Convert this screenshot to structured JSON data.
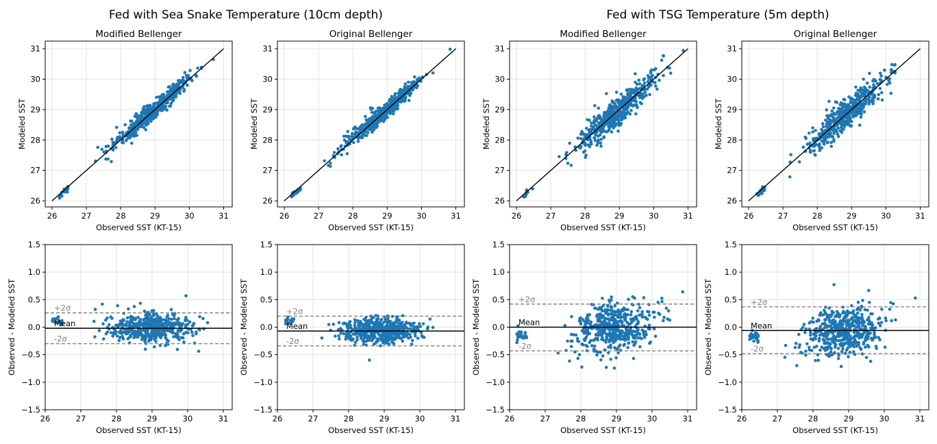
{
  "group_titles": [
    "Fed with Sea Snake Temperature (10cm depth)",
    "Fed with TSG Temperature (5m depth)"
  ],
  "chart_data": [
    {
      "type": "scatter",
      "title": "Modified Bellenger",
      "xlabel": "Observed SST (KT-15)",
      "ylabel": "Modeled SST",
      "xlim": [
        25.8,
        31.25
      ],
      "ylim": [
        25.8,
        31.25
      ],
      "xticks": [
        26,
        27,
        28,
        29,
        30,
        31
      ],
      "yticks": [
        26,
        27,
        28,
        29,
        30,
        31
      ],
      "grid": true,
      "one_to_one_line": {
        "x": [
          26,
          31
        ],
        "y": [
          26,
          31
        ]
      },
      "cluster": {
        "x_range": [
          26.2,
          30.9
        ],
        "spread_y": 0.25,
        "outlier_low_cluster": [
          26.2,
          26.45
        ]
      }
    },
    {
      "type": "scatter",
      "title": "Original Bellenger",
      "xlabel": "Observed SST (KT-15)",
      "ylabel": "Modeled SST",
      "xlim": [
        25.8,
        31.25
      ],
      "ylim": [
        25.8,
        31.25
      ],
      "xticks": [
        26,
        27,
        28,
        29,
        30,
        31
      ],
      "yticks": [
        26,
        27,
        28,
        29,
        30,
        31
      ],
      "grid": true,
      "one_to_one_line": {
        "x": [
          26,
          31
        ],
        "y": [
          26,
          31
        ]
      },
      "cluster": {
        "x_range": [
          26.2,
          30.9
        ],
        "spread_y": 0.2,
        "outlier_low_cluster": [
          26.2,
          26.45
        ]
      }
    },
    {
      "type": "scatter",
      "title": "Modified Bellenger",
      "xlabel": "Observed SST (KT-15)",
      "ylabel": "Modeled SST",
      "xlim": [
        25.8,
        31.25
      ],
      "ylim": [
        25.8,
        31.25
      ],
      "xticks": [
        26,
        27,
        28,
        29,
        30,
        31
      ],
      "yticks": [
        26,
        27,
        28,
        29,
        30,
        31
      ],
      "grid": true,
      "one_to_one_line": {
        "x": [
          26,
          31
        ],
        "y": [
          26,
          31
        ]
      },
      "cluster": {
        "x_range": [
          26.2,
          31.0
        ],
        "spread_y": 0.4,
        "outlier_low_cluster": [
          26.2,
          26.5
        ]
      }
    },
    {
      "type": "scatter",
      "title": "Original Bellenger",
      "xlabel": "Observed SST (KT-15)",
      "ylabel": "Modeled SST",
      "xlim": [
        25.8,
        31.25
      ],
      "ylim": [
        25.8,
        31.25
      ],
      "xticks": [
        26,
        27,
        28,
        29,
        30,
        31
      ],
      "yticks": [
        26,
        27,
        28,
        29,
        30,
        31
      ],
      "grid": true,
      "one_to_one_line": {
        "x": [
          26,
          31
        ],
        "y": [
          26,
          31
        ]
      },
      "cluster": {
        "x_range": [
          26.2,
          31.0
        ],
        "spread_y": 0.4,
        "outlier_low_cluster": [
          26.2,
          26.5
        ]
      }
    },
    {
      "type": "scatter",
      "xlabel": "Observed SST (KT-15)",
      "ylabel": "Observed - Modeled SST",
      "xlim": [
        26,
        31.25
      ],
      "ylim": [
        -1.5,
        1.5
      ],
      "xticks": [
        26,
        27,
        28,
        29,
        30,
        31
      ],
      "yticks": [
        -1.5,
        -1.0,
        -0.5,
        0.0,
        0.5,
        1.0,
        1.5
      ],
      "grid": true,
      "mean": -0.02,
      "plus_2sigma": 0.26,
      "minus_2sigma": -0.3,
      "labels": {
        "plus": "+2σ",
        "mean": "Mean",
        "minus": "-2σ"
      },
      "cluster": {
        "x_range": [
          26.2,
          30.9
        ],
        "spread_y": 0.25
      }
    },
    {
      "type": "scatter",
      "xlabel": "Observed SST (KT-15)",
      "ylabel": "Observed - Modeled SST",
      "xlim": [
        26,
        31.25
      ],
      "ylim": [
        -1.5,
        1.5
      ],
      "xticks": [
        26,
        27,
        28,
        29,
        30,
        31
      ],
      "yticks": [
        -1.5,
        -1.0,
        -0.5,
        0.0,
        0.5,
        1.0,
        1.5
      ],
      "grid": true,
      "mean": -0.07,
      "plus_2sigma": 0.2,
      "minus_2sigma": -0.34,
      "labels": {
        "plus": "+2σ",
        "mean": "Mean",
        "minus": "-2σ"
      },
      "cluster": {
        "x_range": [
          26.2,
          30.9
        ],
        "spread_y": 0.2
      }
    },
    {
      "type": "scatter",
      "xlabel": "Observed SST (KT-15)",
      "ylabel": "Observed - Modeled SST",
      "xlim": [
        26,
        31.25
      ],
      "ylim": [
        -1.5,
        1.5
      ],
      "xticks": [
        26,
        27,
        28,
        29,
        30,
        31
      ],
      "yticks": [
        -1.5,
        -1.0,
        -0.5,
        0.0,
        0.5,
        1.0,
        1.5
      ],
      "grid": true,
      "mean": 0.0,
      "plus_2sigma": 0.42,
      "minus_2sigma": -0.43,
      "labels": {
        "plus": "+2σ",
        "mean": "Mean",
        "minus": "-2σ"
      },
      "cluster": {
        "x_range": [
          26.2,
          31.0
        ],
        "spread_y": 0.4
      }
    },
    {
      "type": "scatter",
      "xlabel": "Observed SST (KT-15)",
      "ylabel": "Observed - Modeled SST",
      "xlim": [
        26,
        31.25
      ],
      "ylim": [
        -1.5,
        1.5
      ],
      "xticks": [
        26,
        27,
        28,
        29,
        30,
        31
      ],
      "yticks": [
        -1.5,
        -1.0,
        -0.5,
        0.0,
        0.5,
        1.0,
        1.5
      ],
      "grid": true,
      "mean": -0.06,
      "plus_2sigma": 0.37,
      "minus_2sigma": -0.48,
      "labels": {
        "plus": "+2σ",
        "mean": "Mean",
        "minus": "-2σ"
      },
      "cluster": {
        "x_range": [
          26.2,
          31.0
        ],
        "spread_y": 0.4
      }
    }
  ],
  "colors": {
    "points": "#1f77b4",
    "line": "#000000",
    "sigma": "#808080",
    "grid": "#dddddd"
  }
}
